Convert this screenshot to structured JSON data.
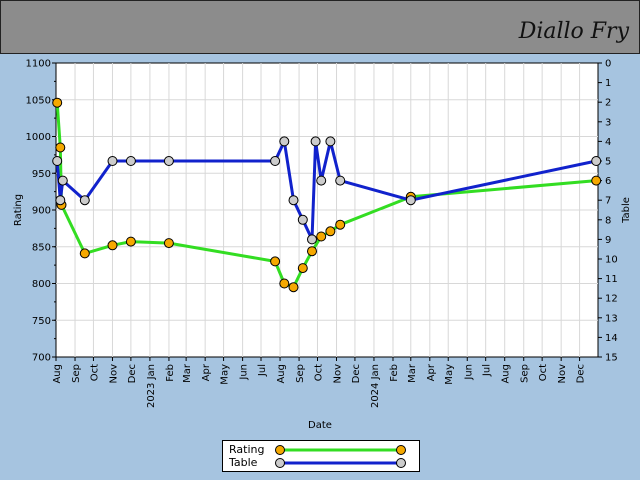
{
  "header": {
    "player_name": "Diallo Fry"
  },
  "chart_data": {
    "type": "line",
    "xlabel": "Date",
    "ylabel_left": "Rating",
    "ylabel_right": "Table",
    "ylim_left": [
      700,
      1100
    ],
    "ylim_right": [
      15,
      0
    ],
    "left_ticks": [
      700,
      750,
      800,
      850,
      900,
      950,
      1000,
      1050,
      1100
    ],
    "right_ticks": [
      0,
      1,
      2,
      3,
      4,
      5,
      6,
      7,
      8,
      9,
      10,
      11,
      12,
      13,
      14,
      15
    ],
    "x_range": [
      "2022-08-01",
      "2024-12-31"
    ],
    "x_tick_labels": [
      "Aug",
      "Sep",
      "Oct",
      "Nov",
      "Dec",
      "2023 Jan",
      "Feb",
      "Mar",
      "Apr",
      "May",
      "Jun",
      "Jul",
      "Aug",
      "Sep",
      "Oct",
      "Nov",
      "Dec",
      "2024 Jan",
      "Feb",
      "Mar",
      "Apr",
      "May",
      "Jun",
      "Jul",
      "Aug",
      "Sep",
      "Oct",
      "Nov",
      "Dec"
    ],
    "grid": true,
    "series": [
      {
        "name": "Rating",
        "axis": "left",
        "line_color": "#33dd22",
        "marker_color": "#f5a800",
        "points": [
          {
            "x": "2022-08-03",
            "y": 1046
          },
          {
            "x": "2022-08-08",
            "y": 985
          },
          {
            "x": "2022-08-10",
            "y": 907
          },
          {
            "x": "2022-09-17",
            "y": 841
          },
          {
            "x": "2022-11-01",
            "y": 852
          },
          {
            "x": "2022-12-01",
            "y": 857
          },
          {
            "x": "2023-02-01",
            "y": 855
          },
          {
            "x": "2023-07-24",
            "y": 830
          },
          {
            "x": "2023-08-08",
            "y": 800
          },
          {
            "x": "2023-08-23",
            "y": 795
          },
          {
            "x": "2023-09-07",
            "y": 821
          },
          {
            "x": "2023-09-22",
            "y": 844
          },
          {
            "x": "2023-10-07",
            "y": 864
          },
          {
            "x": "2023-10-22",
            "y": 871
          },
          {
            "x": "2023-11-07",
            "y": 880
          },
          {
            "x": "2024-03-01",
            "y": 918
          },
          {
            "x": "2024-12-28",
            "y": 940
          }
        ]
      },
      {
        "name": "Table",
        "axis": "right",
        "line_color": "#1122cc",
        "marker_color": "#cccccc",
        "points": [
          {
            "x": "2022-08-03",
            "y": 5
          },
          {
            "x": "2022-08-08",
            "y": 7
          },
          {
            "x": "2022-08-12",
            "y": 6
          },
          {
            "x": "2022-09-17",
            "y": 7
          },
          {
            "x": "2022-11-01",
            "y": 5
          },
          {
            "x": "2022-12-01",
            "y": 5
          },
          {
            "x": "2023-02-01",
            "y": 5
          },
          {
            "x": "2023-07-24",
            "y": 5
          },
          {
            "x": "2023-08-08",
            "y": 4
          },
          {
            "x": "2023-08-23",
            "y": 7
          },
          {
            "x": "2023-09-07",
            "y": 8
          },
          {
            "x": "2023-09-22",
            "y": 9
          },
          {
            "x": "2023-09-28",
            "y": 4
          },
          {
            "x": "2023-10-07",
            "y": 6
          },
          {
            "x": "2023-10-22",
            "y": 4
          },
          {
            "x": "2023-11-07",
            "y": 6
          },
          {
            "x": "2024-03-01",
            "y": 7
          },
          {
            "x": "2024-12-28",
            "y": 5
          }
        ]
      }
    ]
  },
  "legend": {
    "items": [
      "Rating",
      "Table"
    ]
  }
}
